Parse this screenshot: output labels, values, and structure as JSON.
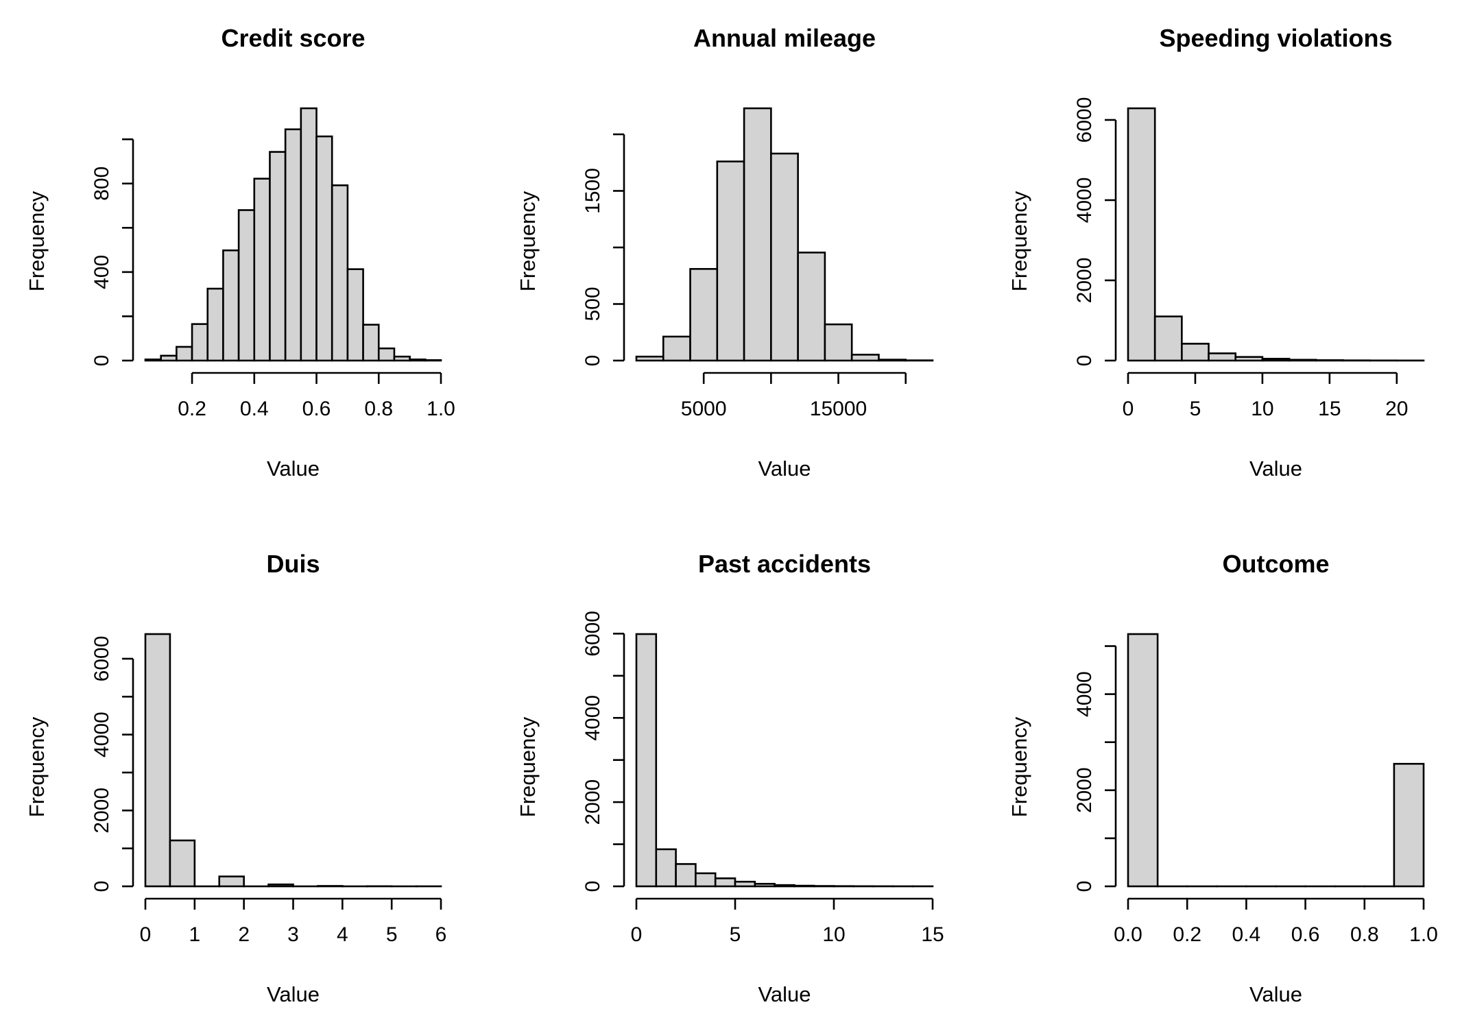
{
  "chart_data": [
    {
      "type": "bar",
      "title": "Credit score",
      "xlabel": "Value",
      "ylabel": "Frequency",
      "bin_edges": [
        0.05,
        0.1,
        0.15,
        0.2,
        0.25,
        0.3,
        0.35,
        0.4,
        0.45,
        0.5,
        0.55,
        0.6,
        0.65,
        0.7,
        0.75,
        0.8,
        0.85,
        0.9,
        0.95,
        1.0
      ],
      "values": [
        5,
        22,
        62,
        165,
        325,
        498,
        680,
        822,
        943,
        1045,
        1140,
        1013,
        792,
        413,
        162,
        55,
        18,
        5,
        2
      ],
      "xlim": [
        0.05,
        1.0
      ],
      "ylim": [
        0,
        1140
      ],
      "xticks": [
        0.2,
        0.4,
        0.6,
        0.8,
        1.0
      ],
      "xtick_labels": [
        "0.2",
        "0.4",
        "0.6",
        "0.8",
        "1.0"
      ],
      "yticks": [
        0,
        200,
        400,
        600,
        800,
        1000
      ],
      "ytick_labels": [
        "0",
        "",
        "400",
        "",
        "800",
        ""
      ]
    },
    {
      "type": "bar",
      "title": "Annual mileage",
      "xlabel": "Value",
      "ylabel": "Frequency",
      "bin_edges": [
        0,
        2000,
        4000,
        6000,
        8000,
        10000,
        12000,
        14000,
        16000,
        18000,
        20000,
        22000
      ],
      "values": [
        35,
        212,
        810,
        1760,
        2230,
        1830,
        955,
        320,
        52,
        8,
        2
      ],
      "xlim": [
        0,
        22000
      ],
      "ylim": [
        0,
        2230
      ],
      "xticks": [
        5000,
        10000,
        15000,
        20000
      ],
      "xtick_labels": [
        "5000",
        "",
        "15000",
        ""
      ],
      "yticks": [
        0,
        500,
        1000,
        1500,
        2000
      ],
      "ytick_labels": [
        "0",
        "500",
        "",
        "1500",
        ""
      ]
    },
    {
      "type": "bar",
      "title": "Speeding violations",
      "xlabel": "Value",
      "ylabel": "Frequency",
      "bin_edges": [
        0,
        2,
        4,
        6,
        8,
        10,
        12,
        14,
        16,
        18,
        20,
        22
      ],
      "values": [
        6290,
        1100,
        420,
        180,
        90,
        45,
        20,
        10,
        5,
        3,
        2
      ],
      "xlim": [
        0,
        22
      ],
      "ylim": [
        0,
        6290
      ],
      "xticks": [
        0,
        5,
        10,
        15,
        20
      ],
      "xtick_labels": [
        "0",
        "5",
        "10",
        "15",
        "20"
      ],
      "yticks": [
        0,
        2000,
        4000,
        6000
      ],
      "ytick_labels": [
        "0",
        "2000",
        "4000",
        "6000"
      ]
    },
    {
      "type": "bar",
      "title": "Duis",
      "xlabel": "Value",
      "ylabel": "Frequency",
      "bin_edges": [
        0,
        0.5,
        1,
        1.5,
        2,
        2.5,
        3,
        3.5,
        4,
        4.5,
        5,
        5.5,
        6
      ],
      "values": [
        6650,
        1210,
        0,
        260,
        0,
        50,
        0,
        10,
        0,
        3,
        0,
        1
      ],
      "xlim": [
        0,
        6
      ],
      "ylim": [
        0,
        6650
      ],
      "xticks": [
        0,
        1,
        2,
        3,
        4,
        5,
        6
      ],
      "xtick_labels": [
        "0",
        "1",
        "2",
        "3",
        "4",
        "5",
        "6"
      ],
      "yticks": [
        0,
        1000,
        2000,
        3000,
        4000,
        5000,
        6000
      ],
      "ytick_labels": [
        "0",
        "",
        "2000",
        "",
        "4000",
        "",
        "6000"
      ]
    },
    {
      "type": "bar",
      "title": "Past accidents",
      "xlabel": "Value",
      "ylabel": "Frequency",
      "bin_edges": [
        0,
        1,
        2,
        3,
        4,
        5,
        6,
        7,
        8,
        9,
        10,
        11,
        12,
        13,
        14,
        15
      ],
      "values": [
        5990,
        880,
        530,
        310,
        190,
        110,
        60,
        30,
        15,
        8,
        5,
        3,
        2,
        1,
        1
      ],
      "xlim": [
        0,
        15
      ],
      "ylim": [
        0,
        5990
      ],
      "xticks": [
        0,
        5,
        10,
        15
      ],
      "xtick_labels": [
        "0",
        "5",
        "10",
        "15"
      ],
      "yticks": [
        0,
        1000,
        2000,
        3000,
        4000,
        5000,
        6000
      ],
      "ytick_labels": [
        "0",
        "",
        "2000",
        "",
        "4000",
        "",
        "6000"
      ]
    },
    {
      "type": "bar",
      "title": "Outcome",
      "xlabel": "Value",
      "ylabel": "Frequency",
      "bin_edges": [
        0,
        0.1,
        0.2,
        0.3,
        0.4,
        0.5,
        0.6,
        0.7,
        0.8,
        0.9,
        1.0
      ],
      "values": [
        5250,
        0,
        0,
        0,
        0,
        0,
        0,
        0,
        0,
        2550
      ],
      "xlim": [
        0,
        1.0
      ],
      "ylim": [
        0,
        5250
      ],
      "xticks": [
        0,
        0.2,
        0.4,
        0.6,
        0.8,
        1.0
      ],
      "xtick_labels": [
        "0.0",
        "0.2",
        "0.4",
        "0.6",
        "0.8",
        "1.0"
      ],
      "yticks": [
        0,
        1000,
        2000,
        3000,
        4000,
        5000
      ],
      "ytick_labels": [
        "0",
        "",
        "2000",
        "",
        "4000",
        ""
      ]
    }
  ]
}
